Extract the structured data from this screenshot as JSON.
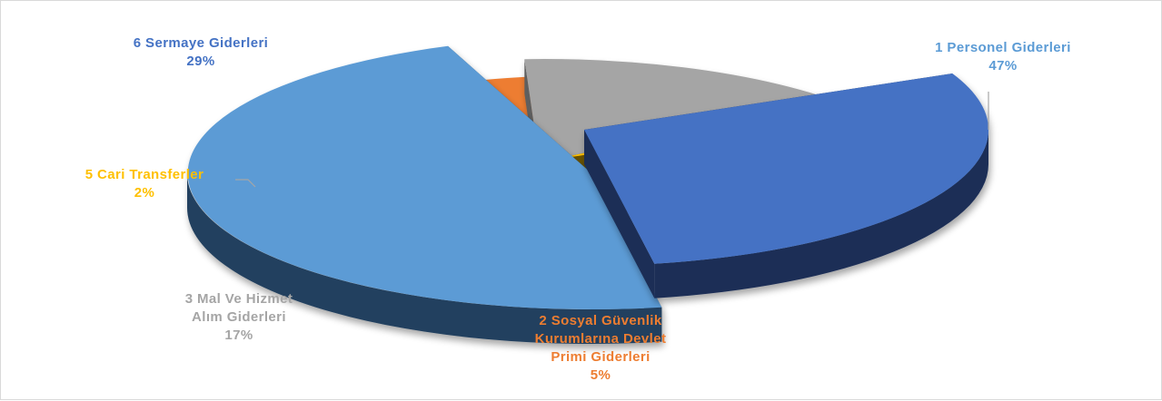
{
  "chart_data": {
    "type": "pie",
    "style": "3d-exploded",
    "legend": "none",
    "categories": [
      "1 Personel Giderleri",
      "2 Sosyal Güvenlik Kurumlarına Devlet Primi Giderleri",
      "3 Mal Ve Hizmet Alım Giderleri",
      "5 Cari Transferler",
      "6 Sermaye Giderleri"
    ],
    "values": [
      47,
      5,
      17,
      2,
      29
    ],
    "value_labels": [
      "47%",
      "5%",
      "17%",
      "2%",
      "29%"
    ],
    "label_lines": [
      [
        "1 Personel Giderleri"
      ],
      [
        "2 Sosyal Güvenlik",
        "Kurumlarına Devlet",
        "Primi Giderleri"
      ],
      [
        "3 Mal Ve Hizmet",
        "Alım Giderleri"
      ],
      [
        "5 Cari Transferler"
      ],
      [
        "6 Sermaye Giderleri"
      ]
    ],
    "colors": [
      "#5b9bd5",
      "#ed7d31",
      "#a5a5a5",
      "#ffc000",
      "#4472c4"
    ],
    "side_colors": [
      "#23415f",
      "#7a3f14",
      "#5e5e5e",
      "#6b5200",
      "#1d2f57"
    ]
  }
}
